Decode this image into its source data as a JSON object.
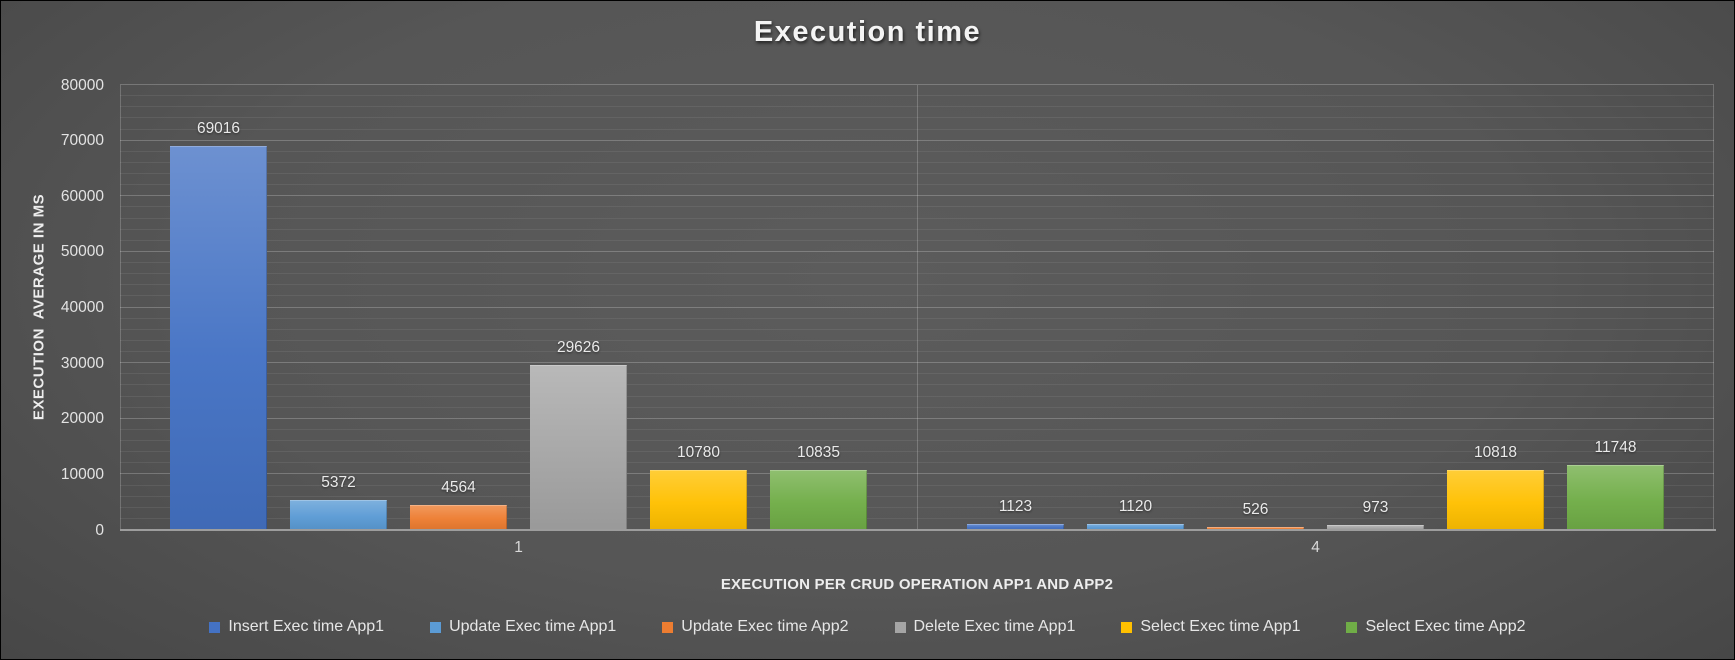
{
  "chart_data": {
    "type": "bar",
    "title": "Execution time",
    "xlabel": "EXECUTION PER CRUD OPERATION APP1 AND APP2",
    "ylabel": "EXECUTION  AVERAGE IN MS",
    "categories": [
      "1",
      "4"
    ],
    "series": [
      {
        "name": "Insert Exec time App1",
        "color": "#4472C4",
        "values": [
          69016,
          1123
        ]
      },
      {
        "name": "Update Exec time App1",
        "color": "#5B9BD5",
        "values": [
          5372,
          1120
        ]
      },
      {
        "name": "Update Exec time App2",
        "color": "#ED7D31",
        "values": [
          4564,
          526
        ]
      },
      {
        "name": "Delete Exec time App1",
        "color": "#A5A5A5",
        "values": [
          29626,
          973
        ]
      },
      {
        "name": "Select Exec time App1",
        "color": "#FFC000",
        "values": [
          10780,
          10818
        ]
      },
      {
        "name": "Select Exec time App2",
        "color": "#70AD47",
        "values": [
          10835,
          11748
        ]
      }
    ],
    "ylim": [
      0,
      80000
    ],
    "y_tick_step": 10000,
    "y_minor_step": 2000,
    "grid": true,
    "legend_position": "bottom",
    "theme": {
      "background_center": "#575757",
      "background_edge": "#1b1b1b",
      "text": "#e8e8e8",
      "axis_line": "#9d9d9d"
    }
  }
}
